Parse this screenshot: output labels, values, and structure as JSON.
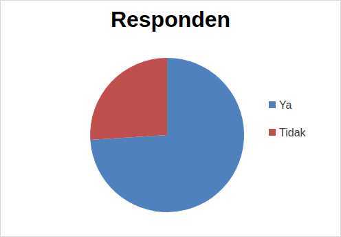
{
  "chart_data": {
    "type": "pie",
    "title": "Responden",
    "categories": [
      "Ya",
      "Tidak"
    ],
    "values": [
      74,
      26
    ],
    "colors": [
      "#4f81bd",
      "#c0504d"
    ],
    "legend": "right"
  }
}
